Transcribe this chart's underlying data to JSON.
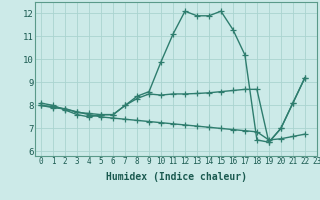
{
  "xlabel": "Humidex (Indice chaleur)",
  "xlim": [
    -0.5,
    23
  ],
  "ylim": [
    5.8,
    12.5
  ],
  "yticks": [
    6,
    7,
    8,
    9,
    10,
    11,
    12
  ],
  "xticks": [
    0,
    1,
    2,
    3,
    4,
    5,
    6,
    7,
    8,
    9,
    10,
    11,
    12,
    13,
    14,
    15,
    16,
    17,
    18,
    19,
    20,
    21,
    22,
    23
  ],
  "bg_color": "#cceae8",
  "grid_color": "#aad4d0",
  "line_color": "#2e7d6e",
  "line1_x": [
    0,
    1,
    2,
    3,
    4,
    5,
    6,
    7,
    8,
    9,
    10,
    11,
    12,
    13,
    14,
    15,
    16,
    17,
    18,
    19,
    20,
    21,
    22
  ],
  "line1_y": [
    8.1,
    8.0,
    7.8,
    7.6,
    7.5,
    7.6,
    7.6,
    8.0,
    8.4,
    8.6,
    9.9,
    11.1,
    12.1,
    11.9,
    11.9,
    12.1,
    11.3,
    10.2,
    6.5,
    6.4,
    7.0,
    8.1,
    9.2
  ],
  "line2_x": [
    0,
    1,
    2,
    3,
    4,
    5,
    6,
    7,
    8,
    9,
    10,
    11,
    12,
    13,
    14,
    15,
    16,
    17,
    18,
    19,
    20,
    21,
    22
  ],
  "line2_y": [
    8.0,
    7.9,
    7.85,
    7.7,
    7.65,
    7.6,
    7.6,
    8.0,
    8.3,
    8.5,
    8.45,
    8.5,
    8.5,
    8.52,
    8.55,
    8.6,
    8.65,
    8.7,
    8.7,
    6.4,
    7.0,
    8.1,
    9.2
  ],
  "line3_x": [
    0,
    1,
    2,
    3,
    4,
    5,
    6,
    7,
    8,
    9,
    10,
    11,
    12,
    13,
    14,
    15,
    16,
    17,
    18,
    19,
    20,
    21,
    22
  ],
  "line3_y": [
    8.0,
    7.95,
    7.85,
    7.72,
    7.6,
    7.5,
    7.45,
    7.4,
    7.35,
    7.3,
    7.25,
    7.2,
    7.15,
    7.1,
    7.05,
    7.0,
    6.95,
    6.9,
    6.85,
    6.5,
    6.55,
    6.65,
    6.75
  ],
  "marker": "+",
  "markersize": 4,
  "linewidth": 1.0,
  "tick_fontsize": 6.0
}
